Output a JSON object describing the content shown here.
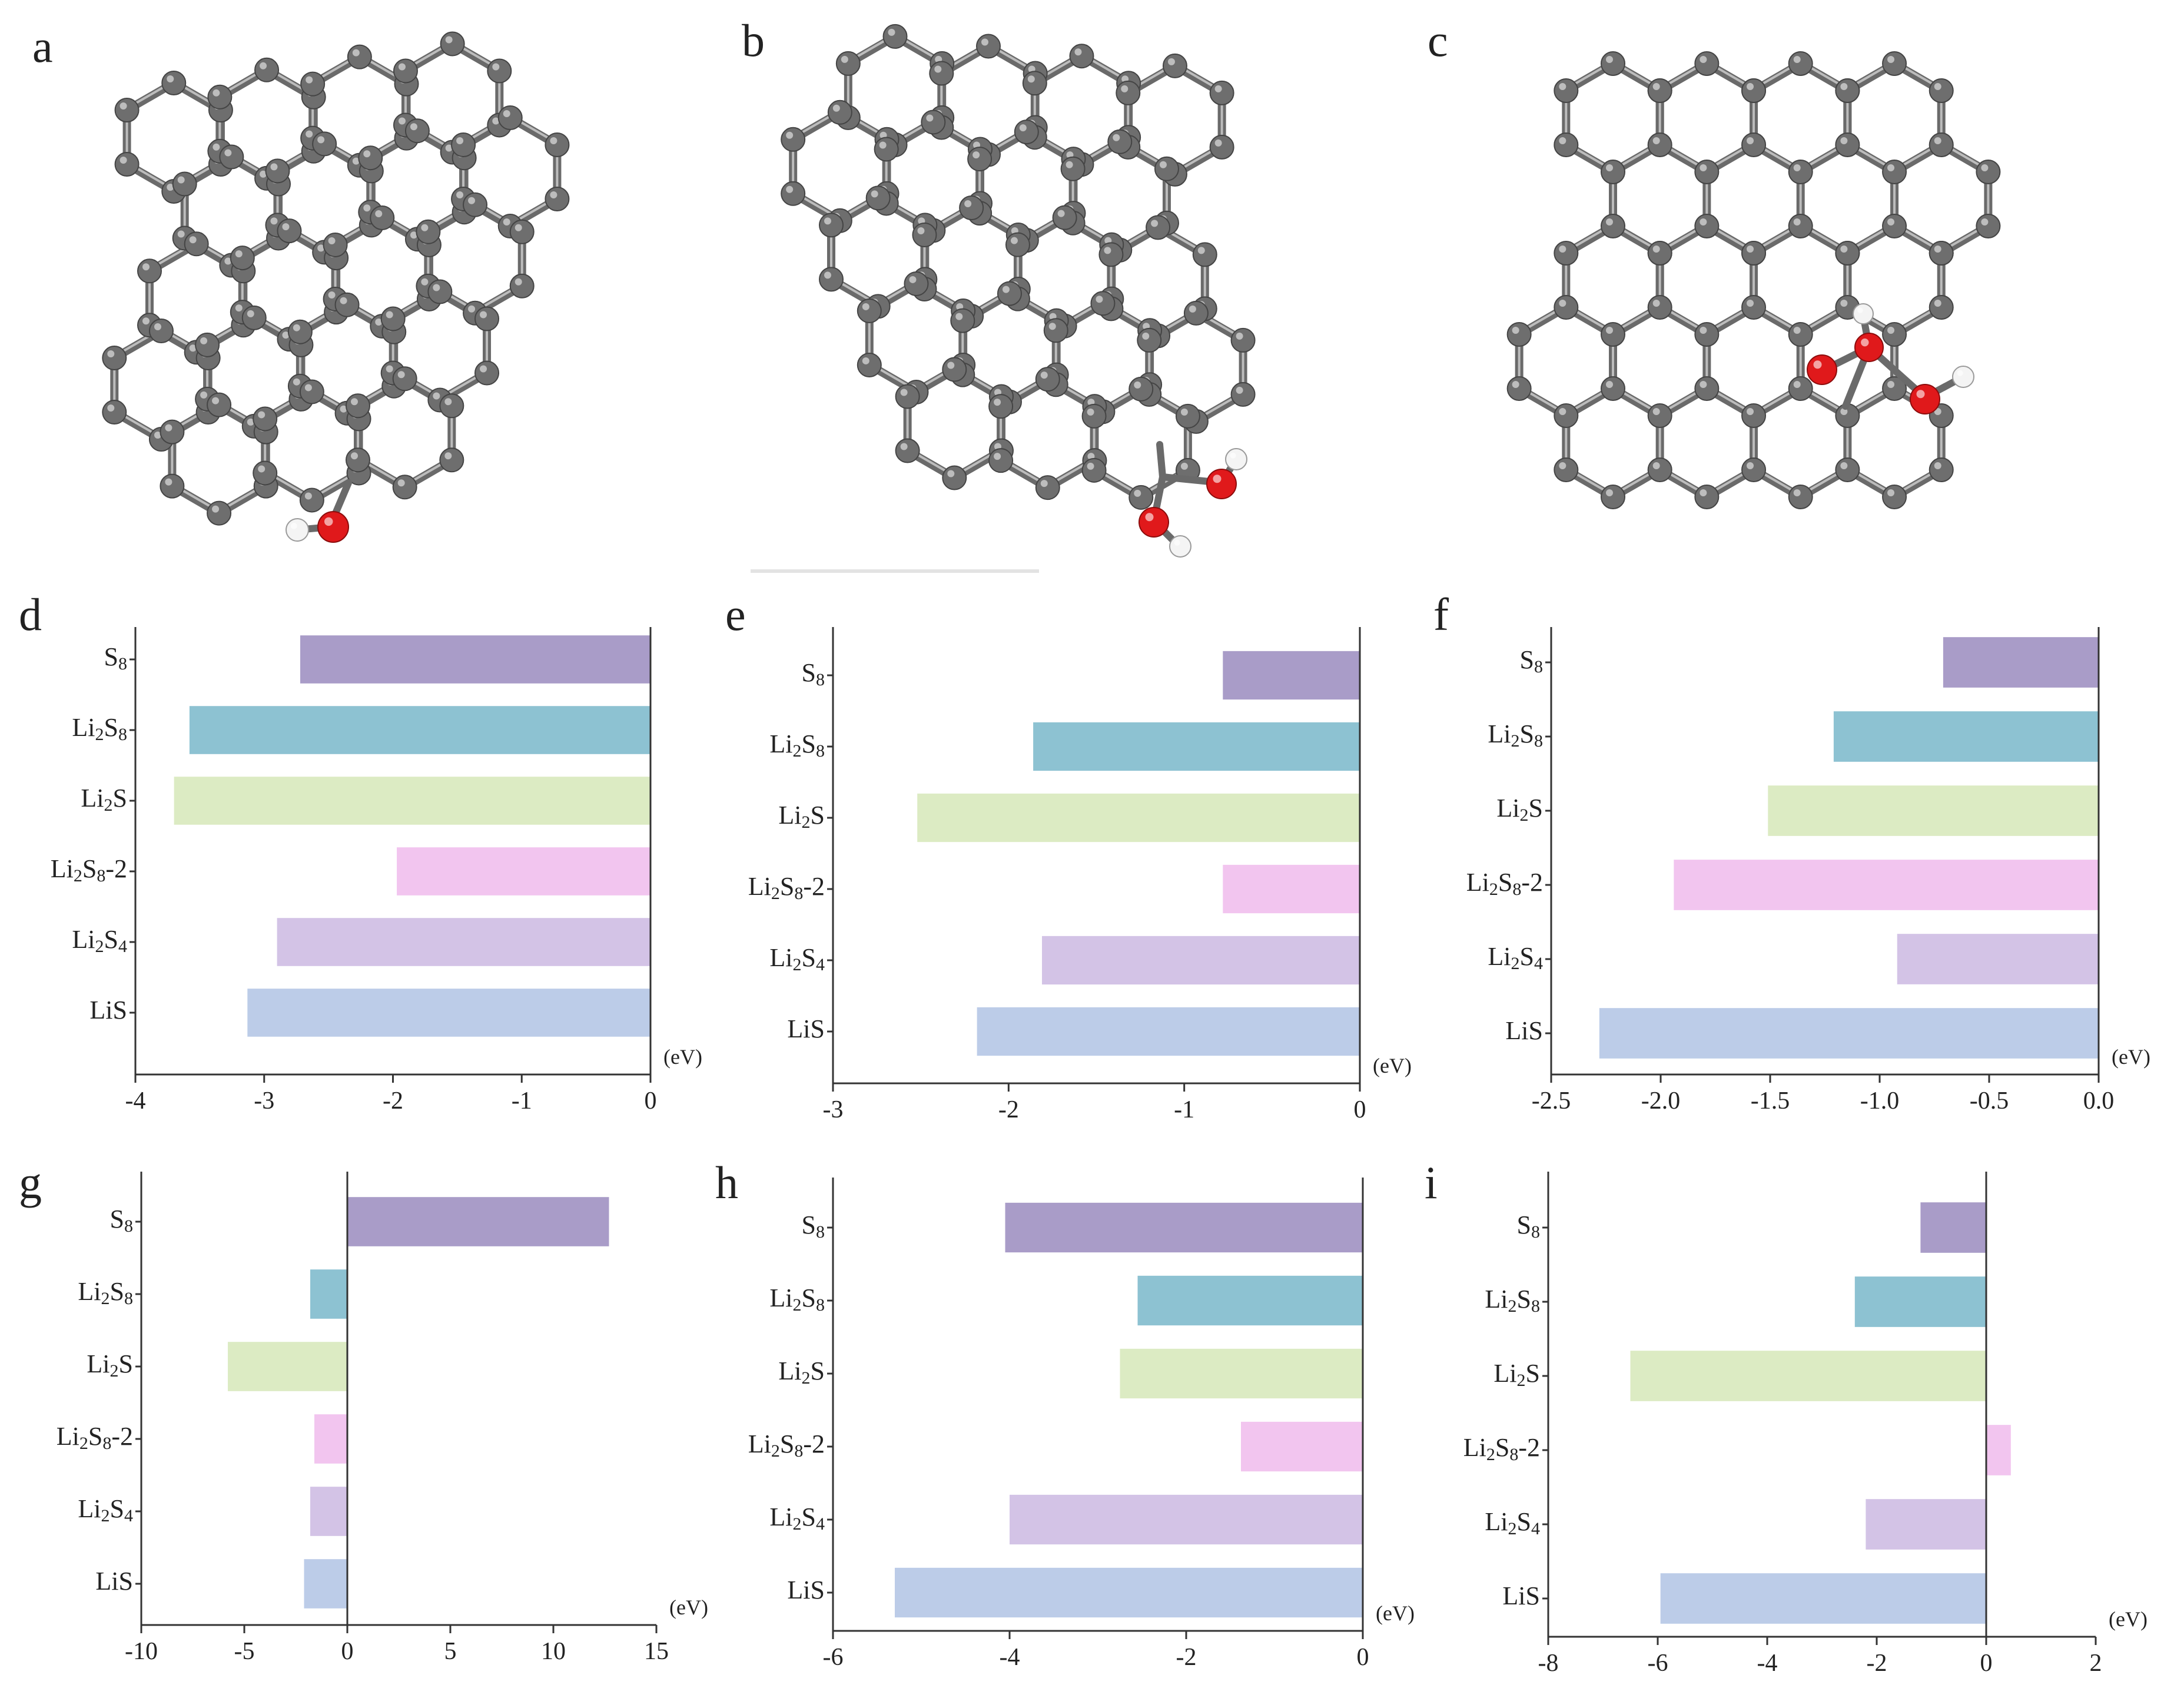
{
  "figure": {
    "panels": [
      "a",
      "b",
      "c",
      "d",
      "e",
      "f",
      "g",
      "h",
      "i"
    ]
  },
  "molecules": [
    {
      "panel": "a",
      "name": "graphene-single-hydroxyl",
      "icon": "graphene-oh-molecule-icon"
    },
    {
      "panel": "b",
      "name": "graphene-pentagon-gem-diol",
      "icon": "graphene-diol-molecule-icon"
    },
    {
      "panel": "c",
      "name": "graphene-carboxyl-hydroxyl",
      "icon": "graphene-cooh-molecule-icon"
    }
  ],
  "colors": {
    "S8": "#a99cc8",
    "Li2S8": "#8dc2d2",
    "Li2S": "#dcebc3",
    "Li2S8-2": "#f2c5ef",
    "Li2S4": "#d3c3e6",
    "LiS": "#bccce8",
    "carbon": "#6e6e6e",
    "oxygen": "#e0191b",
    "hydrogen": "#f4f4f4"
  },
  "chart_data": [
    {
      "panel": "d",
      "type": "bar",
      "orientation": "horizontal",
      "unit": "(eV)",
      "categories": [
        "S8",
        "Li2S8",
        "Li2S",
        "Li2S8-2",
        "Li2S4",
        "LiS"
      ],
      "values": [
        -2.72,
        -3.58,
        -3.7,
        -1.97,
        -2.9,
        -3.13
      ],
      "xlim": [
        -4,
        0
      ],
      "xticks": [
        -4,
        -3,
        -2,
        -1,
        0
      ],
      "tick_labels": [
        "-4",
        "-3",
        "-2",
        "-1",
        "0"
      ]
    },
    {
      "panel": "e",
      "type": "bar",
      "orientation": "horizontal",
      "unit": "(eV)",
      "categories": [
        "S8",
        "Li2S8",
        "Li2S",
        "Li2S8-2",
        "Li2S4",
        "LiS"
      ],
      "values": [
        -0.78,
        -1.86,
        -2.52,
        -0.78,
        -1.81,
        -2.18
      ],
      "xlim": [
        -3,
        0
      ],
      "xticks": [
        -3,
        -2,
        -1,
        0
      ],
      "tick_labels": [
        "-3",
        "-2",
        "-1",
        "0"
      ]
    },
    {
      "panel": "f",
      "type": "bar",
      "orientation": "horizontal",
      "unit": "(eV)",
      "categories": [
        "S8",
        "Li2S8",
        "Li2S",
        "Li2S8-2",
        "Li2S4",
        "LiS"
      ],
      "values": [
        -0.71,
        -1.21,
        -1.51,
        -1.94,
        -0.92,
        -2.28
      ],
      "xlim": [
        -2.5,
        0
      ],
      "xticks": [
        -2.5,
        -2.0,
        -1.5,
        -1.0,
        -0.5,
        0.0
      ],
      "tick_labels": [
        "-2.5",
        "-2.0",
        "-1.5",
        "-1.0",
        "-0.5",
        "0.0"
      ]
    },
    {
      "panel": "g",
      "type": "bar",
      "orientation": "horizontal",
      "unit": "(eV)",
      "categories": [
        "S8",
        "Li2S8",
        "Li2S",
        "Li2S8-2",
        "Li2S4",
        "LiS"
      ],
      "values": [
        12.7,
        -1.8,
        -5.8,
        -1.6,
        -1.8,
        -2.1
      ],
      "xlim": [
        -10,
        15
      ],
      "xticks": [
        -10,
        -5,
        0,
        5,
        10,
        15
      ],
      "tick_labels": [
        "-10",
        "-5",
        "0",
        "5",
        "10",
        "15"
      ]
    },
    {
      "panel": "h",
      "type": "bar",
      "orientation": "horizontal",
      "unit": "(eV)",
      "categories": [
        "S8",
        "Li2S8",
        "Li2S",
        "Li2S8-2",
        "Li2S4",
        "LiS"
      ],
      "values": [
        -4.05,
        -2.55,
        -2.75,
        -1.38,
        -4.0,
        -5.3
      ],
      "xlim": [
        -6,
        0
      ],
      "xticks": [
        -6,
        -4,
        -2,
        0
      ],
      "tick_labels": [
        "-6",
        "-4",
        "-2",
        "0"
      ]
    },
    {
      "panel": "i",
      "type": "bar",
      "orientation": "horizontal",
      "unit": "(eV)",
      "categories": [
        "S8",
        "Li2S8",
        "Li2S",
        "Li2S8-2",
        "Li2S4",
        "LiS"
      ],
      "values": [
        -1.2,
        -2.4,
        -6.5,
        0.45,
        -2.2,
        -5.95
      ],
      "xlim": [
        -8,
        2
      ],
      "xticks": [
        -8,
        -6,
        -4,
        -2,
        0,
        2
      ],
      "tick_labels": [
        "-8",
        "-6",
        "-4",
        "-2",
        "0",
        "2"
      ]
    }
  ]
}
